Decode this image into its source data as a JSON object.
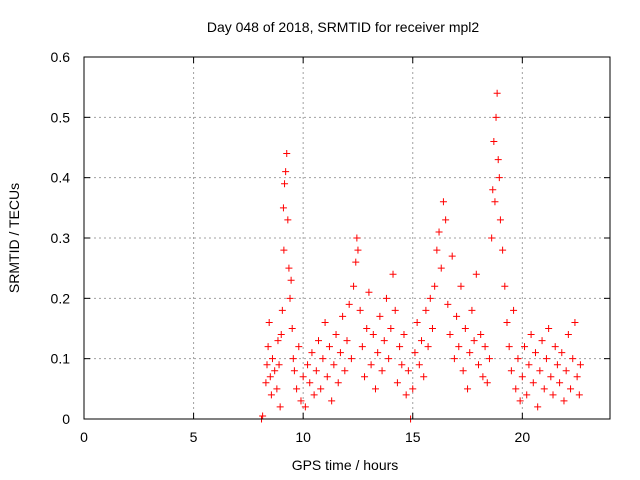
{
  "chart_data": {
    "type": "scatter",
    "title": "Day 048 of 2018, SRMTID for receiver mpl2",
    "xlabel": "GPS time / hours",
    "ylabel": "SRMTID / TECUs",
    "xlim": [
      0,
      24
    ],
    "ylim": [
      0,
      0.6
    ],
    "x_ticks": [
      0,
      5,
      10,
      15,
      20
    ],
    "y_ticks": [
      0,
      0.1,
      0.2,
      0.3,
      0.4,
      0.5,
      0.6
    ],
    "x_tick_labels": [
      "0",
      "5",
      "10",
      "15",
      "20"
    ],
    "y_tick_labels": [
      "0",
      "0.1",
      "0.2",
      "0.3",
      "0.4",
      "0.5",
      "0.6"
    ],
    "grid": true,
    "marker": "plus",
    "series_color": "#ff0000",
    "series": [
      {
        "name": "SRMTID",
        "points": [
          [
            8.1,
            0.0
          ],
          [
            8.15,
            0.005
          ],
          [
            8.3,
            0.06
          ],
          [
            8.35,
            0.09
          ],
          [
            8.4,
            0.12
          ],
          [
            8.45,
            0.16
          ],
          [
            8.5,
            0.07
          ],
          [
            8.55,
            0.04
          ],
          [
            8.6,
            0.1
          ],
          [
            8.7,
            0.08
          ],
          [
            8.8,
            0.05
          ],
          [
            8.85,
            0.13
          ],
          [
            8.9,
            0.09
          ],
          [
            8.95,
            0.02
          ],
          [
            9.0,
            0.14
          ],
          [
            9.05,
            0.18
          ],
          [
            9.1,
            0.35
          ],
          [
            9.12,
            0.28
          ],
          [
            9.15,
            0.39
          ],
          [
            9.2,
            0.41
          ],
          [
            9.25,
            0.44
          ],
          [
            9.3,
            0.33
          ],
          [
            9.35,
            0.25
          ],
          [
            9.4,
            0.2
          ],
          [
            9.45,
            0.23
          ],
          [
            9.5,
            0.15
          ],
          [
            9.55,
            0.1
          ],
          [
            9.6,
            0.08
          ],
          [
            9.7,
            0.05
          ],
          [
            9.8,
            0.12
          ],
          [
            9.9,
            0.03
          ],
          [
            10.0,
            0.07
          ],
          [
            10.1,
            0.02
          ],
          [
            10.2,
            0.09
          ],
          [
            10.3,
            0.06
          ],
          [
            10.4,
            0.11
          ],
          [
            10.5,
            0.04
          ],
          [
            10.6,
            0.08
          ],
          [
            10.7,
            0.13
          ],
          [
            10.8,
            0.05
          ],
          [
            10.9,
            0.1
          ],
          [
            11.0,
            0.16
          ],
          [
            11.1,
            0.07
          ],
          [
            11.2,
            0.12
          ],
          [
            11.3,
            0.03
          ],
          [
            11.4,
            0.09
          ],
          [
            11.5,
            0.14
          ],
          [
            11.6,
            0.06
          ],
          [
            11.7,
            0.11
          ],
          [
            11.8,
            0.17
          ],
          [
            11.9,
            0.08
          ],
          [
            12.0,
            0.13
          ],
          [
            12.1,
            0.19
          ],
          [
            12.2,
            0.1
          ],
          [
            12.3,
            0.22
          ],
          [
            12.4,
            0.26
          ],
          [
            12.45,
            0.3
          ],
          [
            12.5,
            0.28
          ],
          [
            12.6,
            0.18
          ],
          [
            12.7,
            0.12
          ],
          [
            12.8,
            0.07
          ],
          [
            12.9,
            0.15
          ],
          [
            13.0,
            0.21
          ],
          [
            13.1,
            0.09
          ],
          [
            13.2,
            0.14
          ],
          [
            13.3,
            0.05
          ],
          [
            13.4,
            0.11
          ],
          [
            13.5,
            0.17
          ],
          [
            13.6,
            0.08
          ],
          [
            13.7,
            0.13
          ],
          [
            13.8,
            0.2
          ],
          [
            13.9,
            0.1
          ],
          [
            14.0,
            0.15
          ],
          [
            14.1,
            0.24
          ],
          [
            14.2,
            0.18
          ],
          [
            14.3,
            0.06
          ],
          [
            14.4,
            0.12
          ],
          [
            14.5,
            0.09
          ],
          [
            14.6,
            0.14
          ],
          [
            14.7,
            0.04
          ],
          [
            14.8,
            0.08
          ],
          [
            14.9,
            0.0
          ],
          [
            15.0,
            0.05
          ],
          [
            15.1,
            0.11
          ],
          [
            15.2,
            0.16
          ],
          [
            15.3,
            0.09
          ],
          [
            15.4,
            0.13
          ],
          [
            15.5,
            0.07
          ],
          [
            15.6,
            0.18
          ],
          [
            15.7,
            0.12
          ],
          [
            15.8,
            0.2
          ],
          [
            15.9,
            0.15
          ],
          [
            16.0,
            0.22
          ],
          [
            16.1,
            0.28
          ],
          [
            16.2,
            0.31
          ],
          [
            16.3,
            0.25
          ],
          [
            16.4,
            0.36
          ],
          [
            16.5,
            0.33
          ],
          [
            16.6,
            0.19
          ],
          [
            16.7,
            0.14
          ],
          [
            16.8,
            0.27
          ],
          [
            16.9,
            0.1
          ],
          [
            17.0,
            0.17
          ],
          [
            17.1,
            0.12
          ],
          [
            17.2,
            0.22
          ],
          [
            17.3,
            0.08
          ],
          [
            17.4,
            0.15
          ],
          [
            17.5,
            0.05
          ],
          [
            17.6,
            0.11
          ],
          [
            17.7,
            0.18
          ],
          [
            17.8,
            0.13
          ],
          [
            17.9,
            0.24
          ],
          [
            18.0,
            0.09
          ],
          [
            18.1,
            0.14
          ],
          [
            18.2,
            0.07
          ],
          [
            18.3,
            0.12
          ],
          [
            18.4,
            0.06
          ],
          [
            18.5,
            0.1
          ],
          [
            18.6,
            0.3
          ],
          [
            18.65,
            0.38
          ],
          [
            18.7,
            0.46
          ],
          [
            18.75,
            0.36
          ],
          [
            18.8,
            0.5
          ],
          [
            18.85,
            0.54
          ],
          [
            18.9,
            0.43
          ],
          [
            18.95,
            0.4
          ],
          [
            19.0,
            0.33
          ],
          [
            19.1,
            0.28
          ],
          [
            19.2,
            0.22
          ],
          [
            19.3,
            0.16
          ],
          [
            19.4,
            0.12
          ],
          [
            19.5,
            0.08
          ],
          [
            19.6,
            0.18
          ],
          [
            19.7,
            0.05
          ],
          [
            19.8,
            0.1
          ],
          [
            19.9,
            0.03
          ],
          [
            20.0,
            0.07
          ],
          [
            20.1,
            0.12
          ],
          [
            20.2,
            0.04
          ],
          [
            20.3,
            0.09
          ],
          [
            20.4,
            0.14
          ],
          [
            20.5,
            0.06
          ],
          [
            20.6,
            0.11
          ],
          [
            20.7,
            0.02
          ],
          [
            20.8,
            0.08
          ],
          [
            20.9,
            0.13
          ],
          [
            21.0,
            0.05
          ],
          [
            21.1,
            0.1
          ],
          [
            21.2,
            0.15
          ],
          [
            21.3,
            0.07
          ],
          [
            21.4,
            0.04
          ],
          [
            21.5,
            0.12
          ],
          [
            21.6,
            0.09
          ],
          [
            21.7,
            0.06
          ],
          [
            21.8,
            0.11
          ],
          [
            21.9,
            0.03
          ],
          [
            22.0,
            0.08
          ],
          [
            22.1,
            0.14
          ],
          [
            22.2,
            0.05
          ],
          [
            22.3,
            0.1
          ],
          [
            22.4,
            0.16
          ],
          [
            22.5,
            0.07
          ],
          [
            22.6,
            0.04
          ],
          [
            22.65,
            0.09
          ]
        ]
      }
    ]
  }
}
